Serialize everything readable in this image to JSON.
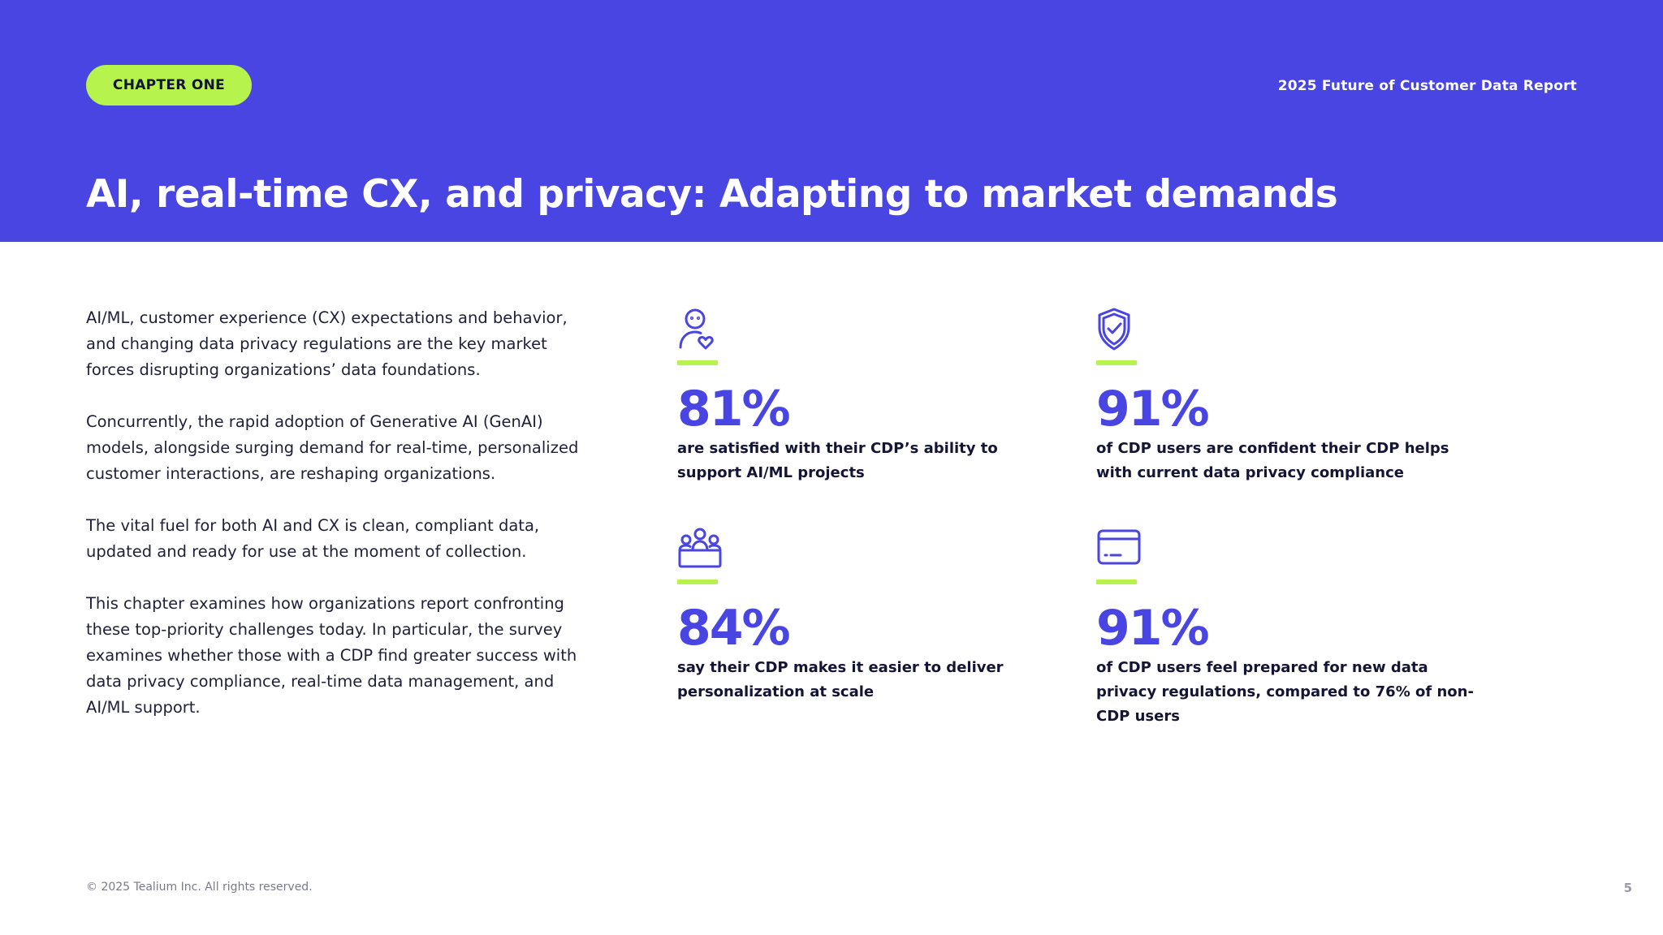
{
  "header": {
    "chapter_label": "CHAPTER ONE",
    "report_name": "2025 Future of Customer Data Report",
    "title": "AI, real-time CX, and privacy: Adapting to market demands"
  },
  "intro": {
    "paragraphs": [
      "AI/ML, customer experience (CX) expectations and behavior, and changing data privacy regulations are the key market forces disrupting organizations’ data foundations.",
      "Concurrently, the rapid adoption of Generative AI (GenAI) models, alongside surging demand for real-time, personalized customer interactions, are reshaping organizations.",
      "The vital fuel for both AI and CX is clean, compliant data, updated and ready for use at the moment of collection.",
      "This chapter examines how organizations report confronting these top-priority challenges today. In particular, the survey examines whether those with a CDP find greater success with data privacy compliance, real-time data management, and AI/ML support."
    ]
  },
  "stats": [
    {
      "icon": "person-heart-icon",
      "value": "81%",
      "description": "are satisfied with their CDP’s ability to support AI/ML projects"
    },
    {
      "icon": "shield-check-icon",
      "value": "91%",
      "description": "of CDP users are confident their CDP helps with current data privacy compliance"
    },
    {
      "icon": "group-people-icon",
      "value": "84%",
      "description": "say their CDP makes it easier to deliver personalization at scale"
    },
    {
      "icon": "browser-window-icon",
      "value": "91%",
      "description": "of CDP users feel prepared for new data privacy regulations, compared to 76% of non-CDP users"
    }
  ],
  "footer": {
    "copyright": "© 2025 Tealium Inc. All rights reserved.",
    "page_number": "5"
  },
  "colors": {
    "header_bg": "#4845e2",
    "accent_green": "#b6f34d",
    "stat_value": "#4845e2",
    "body_text": "#1f1f3a"
  }
}
